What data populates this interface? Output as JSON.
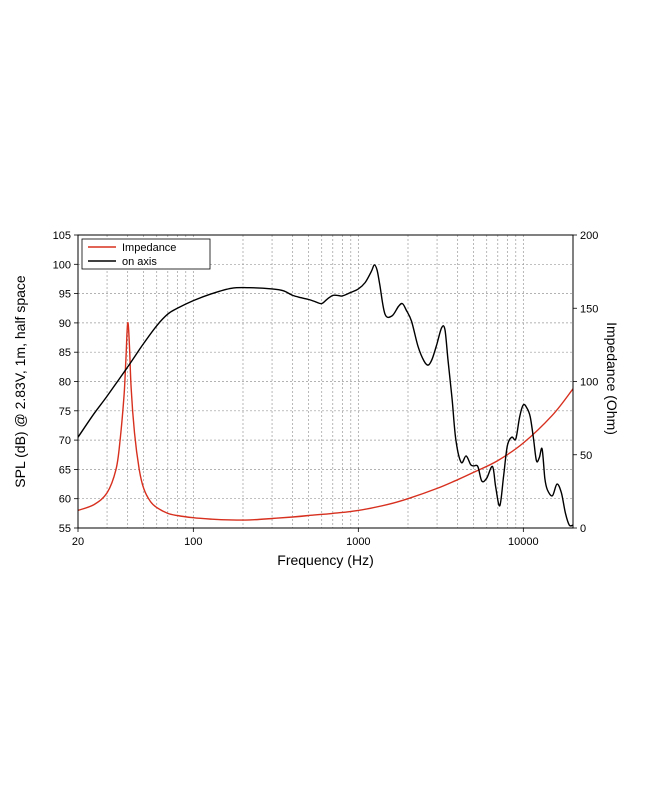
{
  "chart_data": {
    "type": "line",
    "xlabel": "Frequency (Hz)",
    "ylabel": "SPL (dB) @ 2.83V, 1m, half space",
    "y2label": "Impedance (Ohm)",
    "xscale": "log",
    "xlim": [
      20,
      20000
    ],
    "ylim": [
      55,
      105
    ],
    "y2lim": [
      0,
      200
    ],
    "grid": true,
    "legend_position": "top-left",
    "x_tick_labels": [
      "20",
      "100",
      "1000",
      "10000"
    ],
    "y_tick_labels": [
      "55",
      "60",
      "65",
      "70",
      "75",
      "80",
      "85",
      "90",
      "95",
      "100",
      "105"
    ],
    "y2_tick_labels": [
      "0",
      "50",
      "100",
      "150",
      "200"
    ],
    "series": [
      {
        "name": "Impedance",
        "axis": "right",
        "color": "#d7301f",
        "x": [
          20,
          25,
          30,
          34,
          36,
          38,
          39,
          40,
          41,
          42,
          44,
          47,
          50,
          55,
          60,
          70,
          80,
          100,
          130,
          170,
          220,
          300,
          400,
          500,
          700,
          1000,
          1500,
          2000,
          3000,
          4000,
          5000,
          7000,
          10000,
          15000,
          20000
        ],
        "y": [
          12,
          16,
          24,
          40,
          60,
          90,
          115,
          140,
          125,
          95,
          65,
          40,
          27,
          18,
          14,
          10,
          8.5,
          7,
          6,
          5.5,
          5.5,
          6.5,
          7.5,
          8.5,
          10,
          12,
          16,
          20,
          27,
          33,
          38,
          46,
          58,
          77,
          95
        ]
      },
      {
        "name": "on axis",
        "axis": "left",
        "color": "#000000",
        "x": [
          20,
          25,
          30,
          40,
          50,
          60,
          70,
          80,
          100,
          130,
          170,
          220,
          300,
          350,
          400,
          450,
          500,
          550,
          600,
          650,
          700,
          750,
          800,
          900,
          1000,
          1100,
          1200,
          1250,
          1300,
          1350,
          1450,
          1600,
          1750,
          1850,
          1950,
          2100,
          2300,
          2500,
          2650,
          2800,
          3000,
          3200,
          3350,
          3500,
          3700,
          3900,
          4200,
          4500,
          4800,
          5000,
          5300,
          5600,
          6000,
          6500,
          6800,
          7200,
          7600,
          8000,
          8500,
          9000,
          9500,
          10000,
          10500,
          11000,
          11500,
          12000,
          12500,
          13000,
          13500,
          14000,
          15000,
          16000,
          17000,
          18000,
          19000,
          20000
        ],
        "y": [
          70.5,
          74.5,
          77.5,
          82.5,
          86.5,
          89.5,
          91.5,
          92.5,
          93.8,
          95.0,
          95.9,
          96.0,
          95.8,
          95.5,
          94.7,
          94.3,
          94.0,
          93.6,
          93.3,
          94.1,
          94.7,
          94.7,
          94.6,
          95.2,
          95.8,
          96.9,
          98.8,
          99.9,
          99.0,
          96.5,
          91.5,
          91.2,
          92.8,
          93.3,
          92.2,
          90.3,
          86.0,
          83.5,
          82.8,
          83.8,
          86.5,
          89.2,
          88.8,
          83.5,
          77.0,
          70.0,
          66.2,
          67.3,
          65.8,
          65.6,
          65.5,
          63.0,
          63.5,
          65.5,
          62.0,
          58.8,
          64.0,
          69.0,
          70.5,
          70.2,
          74.0,
          76.0,
          75.5,
          74.0,
          70.5,
          66.5,
          67.0,
          68.5,
          63.5,
          61.5,
          60.5,
          62.5,
          61.0,
          57.5,
          55.5,
          55.5
        ]
      }
    ]
  }
}
